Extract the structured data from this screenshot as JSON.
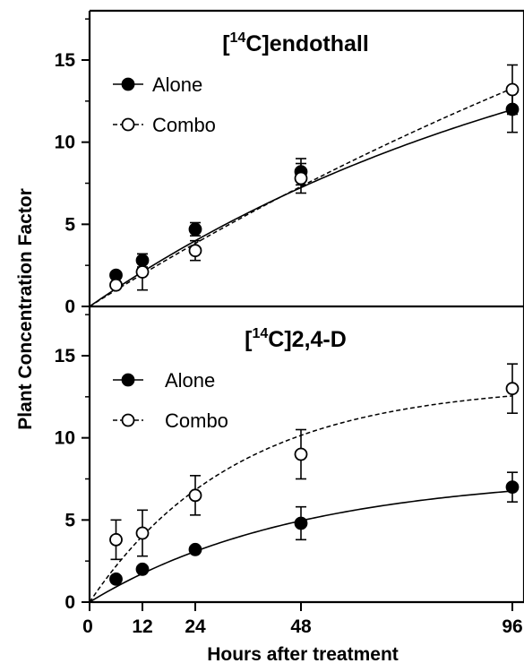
{
  "chart_data": {
    "type": "scatter",
    "xlabel": "Hours after treatment",
    "ylabel": "Plant Concentration Factor",
    "x_ticks": [
      0,
      12,
      24,
      48,
      96
    ],
    "xlim": [
      0,
      96
    ],
    "panels": [
      {
        "title_prefix": "[",
        "title_sup": "14",
        "title_suffix": "C]endothall",
        "ylim": [
          0,
          18
        ],
        "y_ticks": [
          0,
          5,
          10,
          15
        ],
        "legend": {
          "placement": "top-left",
          "entries": [
            "Alone",
            "Combo"
          ]
        },
        "series": [
          {
            "name": "Alone",
            "marker": "filled-circle",
            "line": "solid",
            "x": [
              6,
              12,
              24,
              48,
              96
            ],
            "y": [
              1.9,
              2.8,
              4.7,
              8.2,
              12.0
            ],
            "err": [
              0.0,
              0.4,
              0.4,
              0.8,
              1.4
            ],
            "fit": {
              "form": "exponential-rise",
              "a": 21.0,
              "k": 0.0088
            }
          },
          {
            "name": "Combo",
            "marker": "open-circle",
            "line": "dashed",
            "x": [
              6,
              12,
              24,
              48,
              96
            ],
            "y": [
              1.3,
              2.1,
              3.4,
              7.8,
              13.2
            ],
            "err": [
              0.0,
              1.1,
              0.6,
              0.9,
              1.5
            ],
            "fit": {
              "form": "exponential-rise",
              "a": 40.0,
              "k": 0.0042
            }
          }
        ]
      },
      {
        "title_prefix": "[",
        "title_sup": "14",
        "title_suffix": "C]2,4-D",
        "ylim": [
          0,
          18
        ],
        "y_ticks": [
          0,
          5,
          10,
          15
        ],
        "legend": {
          "placement": "top-left",
          "entries": [
            "Alone",
            "Combo"
          ]
        },
        "series": [
          {
            "name": "Alone",
            "marker": "filled-circle",
            "line": "solid",
            "x": [
              6,
              12,
              24,
              48,
              96
            ],
            "y": [
              1.4,
              2.0,
              3.2,
              4.8,
              7.0
            ],
            "err": [
              0.0,
              0.0,
              0.0,
              1.0,
              0.9
            ],
            "fit": {
              "form": "exponential-rise",
              "a": 7.8,
              "k": 0.021
            }
          },
          {
            "name": "Combo",
            "marker": "open-circle",
            "line": "dashed",
            "x": [
              6,
              12,
              24,
              48,
              96
            ],
            "y": [
              3.8,
              4.2,
              6.5,
              9.0,
              13.0
            ],
            "err": [
              1.2,
              1.4,
              1.2,
              1.5,
              1.5
            ],
            "fit": {
              "form": "exponential-rise",
              "a": 13.3,
              "k": 0.03
            }
          }
        ]
      }
    ]
  }
}
